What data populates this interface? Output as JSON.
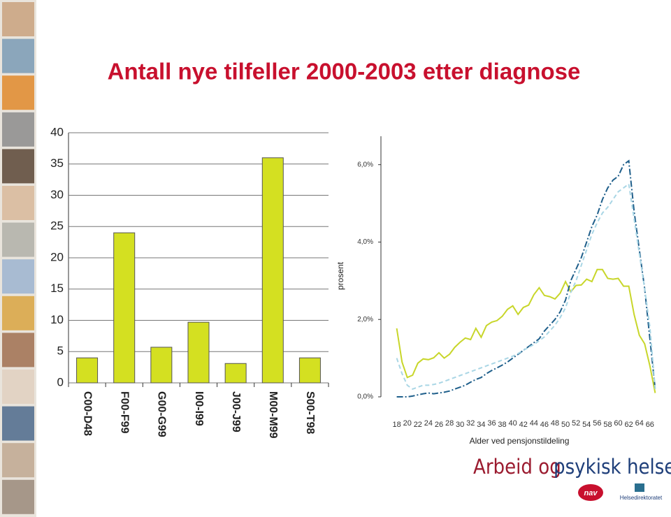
{
  "title": "Antall nye tilfeller 2000-2003 etter diagnose",
  "chart_data": [
    {
      "type": "bar",
      "categories": [
        "C00-D48",
        "F00-F99",
        "G00-G99",
        "I00-I99",
        "J00-J99",
        "M00-M99",
        "S00-T98"
      ],
      "values": [
        4,
        24,
        5.7,
        9.7,
        3.1,
        36,
        4
      ],
      "color": "#d4e021",
      "ylim": [
        0,
        40
      ],
      "yticks": [
        0,
        5,
        10,
        15,
        20,
        25,
        30,
        35,
        40
      ],
      "grid": true
    },
    {
      "type": "line",
      "xlabel": "Alder ved pensjonstildeling",
      "ylabel": "prosent",
      "x": [
        18,
        19,
        20,
        21,
        22,
        23,
        24,
        25,
        26,
        27,
        28,
        29,
        30,
        31,
        32,
        33,
        34,
        35,
        36,
        37,
        38,
        39,
        40,
        41,
        42,
        43,
        44,
        45,
        46,
        47,
        48,
        49,
        50,
        51,
        52,
        53,
        54,
        55,
        56,
        57,
        58,
        59,
        60,
        61,
        62,
        63,
        64,
        65,
        66,
        67
      ],
      "series": [
        {
          "color": "#c8d62a",
          "style": "solid",
          "values": [
            1.77,
            0.9,
            0.5,
            0.56,
            0.87,
            0.98,
            0.96,
            1.01,
            1.14,
            1.0,
            1.1,
            1.28,
            1.41,
            1.52,
            1.48,
            1.77,
            1.54,
            1.84,
            1.93,
            1.97,
            2.08,
            2.26,
            2.35,
            2.13,
            2.31,
            2.37,
            2.64,
            2.82,
            2.62,
            2.59,
            2.53,
            2.68,
            2.98,
            2.71,
            2.88,
            2.89,
            3.04,
            2.98,
            3.29,
            3.29,
            3.06,
            3.04,
            3.06,
            2.86,
            2.86,
            2.13,
            1.59,
            1.37,
            0.8,
            0.1
          ]
        },
        {
          "color": "#1f5f8b",
          "style": "dashdot",
          "values": [
            0.0,
            0.0,
            0.0,
            0.02,
            0.05,
            0.08,
            0.1,
            0.08,
            0.1,
            0.12,
            0.15,
            0.2,
            0.25,
            0.3,
            0.38,
            0.45,
            0.5,
            0.6,
            0.68,
            0.75,
            0.82,
            0.9,
            1.0,
            1.1,
            1.2,
            1.3,
            1.4,
            1.5,
            1.7,
            1.85,
            2.0,
            2.2,
            2.5,
            3.0,
            3.3,
            3.6,
            4.0,
            4.4,
            4.7,
            5.1,
            5.4,
            5.6,
            5.7,
            6.0,
            6.1,
            4.8,
            3.8,
            2.8,
            1.5,
            0.2
          ]
        },
        {
          "color": "#a9d6e5",
          "style": "dashed",
          "values": [
            1.0,
            0.6,
            0.3,
            0.2,
            0.25,
            0.3,
            0.3,
            0.32,
            0.35,
            0.4,
            0.45,
            0.5,
            0.55,
            0.6,
            0.65,
            0.7,
            0.75,
            0.8,
            0.85,
            0.9,
            0.95,
            1.0,
            1.05,
            1.12,
            1.2,
            1.28,
            1.35,
            1.45,
            1.55,
            1.7,
            1.85,
            2.05,
            2.3,
            2.7,
            3.0,
            3.4,
            3.8,
            4.2,
            4.5,
            4.75,
            4.9,
            5.1,
            5.3,
            5.4,
            5.5,
            4.6,
            3.7,
            2.8,
            1.8,
            0.2
          ]
        }
      ],
      "xlim": [
        15,
        70
      ],
      "xticks": [
        18,
        20,
        22,
        24,
        26,
        28,
        30,
        32,
        34,
        36,
        38,
        40,
        42,
        44,
        46,
        48,
        50,
        52,
        54,
        56,
        58,
        60,
        62,
        64,
        66
      ],
      "ylim": [
        0,
        6.5
      ],
      "yticks": [
        {
          "value": 0,
          "label": "0,0%"
        },
        {
          "value": 2,
          "label": "2,0%"
        },
        {
          "value": 4,
          "label": "4,0%"
        },
        {
          "value": 6,
          "label": "6,0%"
        }
      ]
    }
  ],
  "footer": {
    "logo_part1": "Arbeid og",
    "logo_part2": "psykisk helse",
    "nav": "nav",
    "agency": "Helsedirektoratet"
  }
}
